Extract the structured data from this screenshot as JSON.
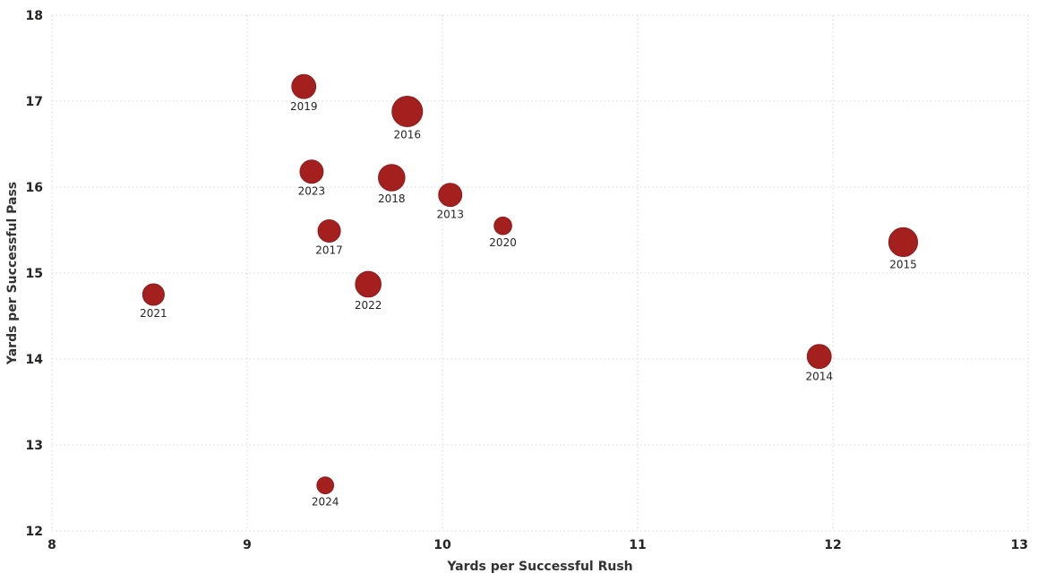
{
  "chart_data": {
    "type": "scatter",
    "title": "",
    "xlabel": "Yards per Successful Rush",
    "ylabel": "Yards per Successful Pass",
    "xlim": [
      8,
      13
    ],
    "ylim": [
      12,
      18
    ],
    "x_ticks": [
      "8",
      "9",
      "10",
      "11",
      "12",
      "13"
    ],
    "y_ticks": [
      "12",
      "13",
      "14",
      "15",
      "16",
      "17",
      "18"
    ],
    "grid": true,
    "legend": "none",
    "point_color": "#a4201f",
    "point_stroke": "#8f1a1a",
    "size_range": [
      8,
      17
    ],
    "points": [
      {
        "label": "2013",
        "x": 10.04,
        "y": 15.91,
        "size": 0.55
      },
      {
        "label": "2014",
        "x": 11.93,
        "y": 14.03,
        "size": 0.6
      },
      {
        "label": "2015",
        "x": 12.36,
        "y": 15.36,
        "size": 0.9
      },
      {
        "label": "2016",
        "x": 9.82,
        "y": 16.88,
        "size": 1.0
      },
      {
        "label": "2017",
        "x": 9.42,
        "y": 15.49,
        "size": 0.5
      },
      {
        "label": "2018",
        "x": 9.74,
        "y": 16.11,
        "size": 0.75
      },
      {
        "label": "2019",
        "x": 9.29,
        "y": 17.17,
        "size": 0.6
      },
      {
        "label": "2020",
        "x": 10.31,
        "y": 15.55,
        "size": 0.2
      },
      {
        "label": "2021",
        "x": 8.52,
        "y": 14.75,
        "size": 0.45
      },
      {
        "label": "2022",
        "x": 9.62,
        "y": 14.87,
        "size": 0.7
      },
      {
        "label": "2023",
        "x": 9.33,
        "y": 16.18,
        "size": 0.55
      },
      {
        "label": "2024",
        "x": 9.4,
        "y": 12.53,
        "size": 0.15
      }
    ]
  }
}
